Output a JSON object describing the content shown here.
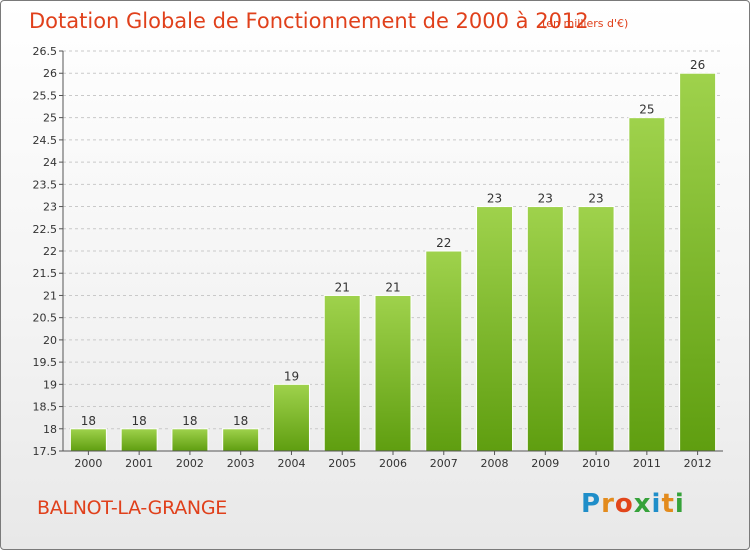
{
  "title": "Dotation Globale de Fonctionnement de 2000 à 2012",
  "subtitle": "(en milliers d'€)",
  "commune": "BALNOT-LA-GRANGE",
  "logo": {
    "letters": [
      "P",
      "r",
      "o",
      "x",
      "i",
      "t",
      "i"
    ],
    "colors": [
      "#1f8ec9",
      "#e38b1d",
      "#e2461b",
      "#36a23a",
      "#1f8ec9",
      "#e38b1d",
      "#36a23a"
    ]
  },
  "colors": {
    "title": "#e0401b",
    "bar_top": "#9fd24c",
    "bar_bottom": "#5f9e10",
    "grid": "#c9c9c9"
  },
  "chart_data": {
    "type": "bar",
    "categories": [
      "2000",
      "2001",
      "2002",
      "2003",
      "2004",
      "2005",
      "2006",
      "2007",
      "2008",
      "2009",
      "2010",
      "2011",
      "2012"
    ],
    "values": [
      18,
      18,
      18,
      18,
      19,
      21,
      21,
      22,
      23,
      23,
      23,
      25,
      26
    ],
    "data_labels": [
      "18",
      "18",
      "18",
      "18",
      "19",
      "21",
      "21",
      "22",
      "23",
      "23",
      "23",
      "25",
      "26"
    ],
    "ylim": [
      17.5,
      26.5
    ],
    "yticks": [
      "17.5",
      "18",
      "18.5",
      "19",
      "19.5",
      "20",
      "20.5",
      "21",
      "21.5",
      "22",
      "22.5",
      "23",
      "23.5",
      "24",
      "24.5",
      "25",
      "25.5",
      "26",
      "26.5"
    ],
    "grid": "horizontal dashed",
    "legend": "none"
  }
}
